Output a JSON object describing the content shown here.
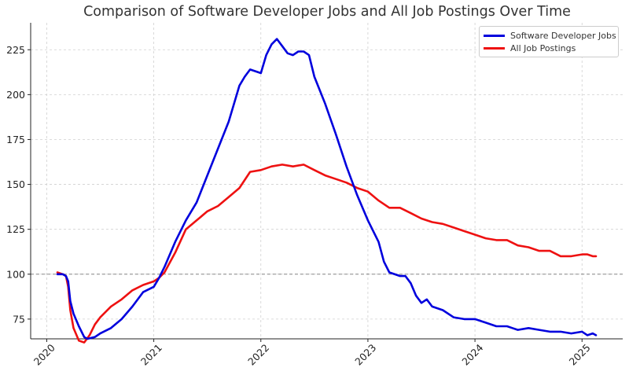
{
  "chart_data": {
    "type": "line",
    "title": "Comparison of Software Developer Jobs and All Job Postings Over Time",
    "xlabel": "",
    "ylabel": "",
    "x_ticks": [
      "2020",
      "2021",
      "2022",
      "2023",
      "2024",
      "2025"
    ],
    "y_ticks": [
      "75",
      "100",
      "125",
      "150",
      "175",
      "200",
      "225"
    ],
    "xlim": [
      2019.85,
      2025.38
    ],
    "ylim": [
      64,
      240
    ],
    "grid": true,
    "reference_line": 100,
    "legend_position": "top-right",
    "series": [
      {
        "name": "Software Developer Jobs",
        "color": "#0000dd",
        "points": [
          [
            2020.1,
            100
          ],
          [
            2020.15,
            100
          ],
          [
            2020.18,
            99
          ],
          [
            2020.2,
            96
          ],
          [
            2020.22,
            85
          ],
          [
            2020.25,
            78
          ],
          [
            2020.3,
            71
          ],
          [
            2020.35,
            65
          ],
          [
            2020.38,
            64
          ],
          [
            2020.45,
            65
          ],
          [
            2020.5,
            67
          ],
          [
            2020.6,
            70
          ],
          [
            2020.7,
            75
          ],
          [
            2020.8,
            82
          ],
          [
            2020.9,
            90
          ],
          [
            2021.0,
            93
          ],
          [
            2021.05,
            98
          ],
          [
            2021.1,
            104
          ],
          [
            2021.2,
            118
          ],
          [
            2021.3,
            130
          ],
          [
            2021.4,
            140
          ],
          [
            2021.5,
            155
          ],
          [
            2021.6,
            170
          ],
          [
            2021.7,
            185
          ],
          [
            2021.8,
            205
          ],
          [
            2021.85,
            210
          ],
          [
            2021.9,
            214
          ],
          [
            2022.0,
            212
          ],
          [
            2022.05,
            222
          ],
          [
            2022.1,
            228
          ],
          [
            2022.15,
            231
          ],
          [
            2022.2,
            227
          ],
          [
            2022.25,
            223
          ],
          [
            2022.3,
            222
          ],
          [
            2022.35,
            224
          ],
          [
            2022.4,
            224
          ],
          [
            2022.45,
            222
          ],
          [
            2022.5,
            210
          ],
          [
            2022.6,
            195
          ],
          [
            2022.7,
            178
          ],
          [
            2022.8,
            160
          ],
          [
            2022.9,
            144
          ],
          [
            2023.0,
            130
          ],
          [
            2023.1,
            118
          ],
          [
            2023.15,
            107
          ],
          [
            2023.2,
            101
          ],
          [
            2023.3,
            99
          ],
          [
            2023.35,
            99
          ],
          [
            2023.4,
            95
          ],
          [
            2023.45,
            88
          ],
          [
            2023.5,
            84
          ],
          [
            2023.55,
            86
          ],
          [
            2023.6,
            82
          ],
          [
            2023.7,
            80
          ],
          [
            2023.8,
            76
          ],
          [
            2023.9,
            75
          ],
          [
            2024.0,
            75
          ],
          [
            2024.1,
            73
          ],
          [
            2024.2,
            71
          ],
          [
            2024.3,
            71
          ],
          [
            2024.35,
            70
          ],
          [
            2024.4,
            69
          ],
          [
            2024.5,
            70
          ],
          [
            2024.6,
            69
          ],
          [
            2024.7,
            68
          ],
          [
            2024.8,
            68
          ],
          [
            2024.9,
            67
          ],
          [
            2025.0,
            68
          ],
          [
            2025.05,
            66
          ],
          [
            2025.1,
            67
          ],
          [
            2025.13,
            66
          ]
        ]
      },
      {
        "name": "All Job Postings",
        "color": "#ee1111",
        "points": [
          [
            2020.1,
            101
          ],
          [
            2020.15,
            100
          ],
          [
            2020.18,
            99
          ],
          [
            2020.2,
            93
          ],
          [
            2020.22,
            80
          ],
          [
            2020.25,
            70
          ],
          [
            2020.3,
            63
          ],
          [
            2020.35,
            62
          ],
          [
            2020.4,
            66
          ],
          [
            2020.45,
            72
          ],
          [
            2020.5,
            76
          ],
          [
            2020.6,
            82
          ],
          [
            2020.7,
            86
          ],
          [
            2020.8,
            91
          ],
          [
            2020.9,
            94
          ],
          [
            2021.0,
            96
          ],
          [
            2021.05,
            98
          ],
          [
            2021.1,
            101
          ],
          [
            2021.2,
            112
          ],
          [
            2021.3,
            125
          ],
          [
            2021.4,
            130
          ],
          [
            2021.5,
            135
          ],
          [
            2021.6,
            138
          ],
          [
            2021.7,
            143
          ],
          [
            2021.8,
            148
          ],
          [
            2021.9,
            157
          ],
          [
            2022.0,
            158
          ],
          [
            2022.1,
            160
          ],
          [
            2022.2,
            161
          ],
          [
            2022.3,
            160
          ],
          [
            2022.4,
            161
          ],
          [
            2022.5,
            158
          ],
          [
            2022.6,
            155
          ],
          [
            2022.7,
            153
          ],
          [
            2022.8,
            151
          ],
          [
            2022.9,
            148
          ],
          [
            2023.0,
            146
          ],
          [
            2023.1,
            141
          ],
          [
            2023.2,
            137
          ],
          [
            2023.3,
            137
          ],
          [
            2023.4,
            134
          ],
          [
            2023.5,
            131
          ],
          [
            2023.6,
            129
          ],
          [
            2023.7,
            128
          ],
          [
            2023.8,
            126
          ],
          [
            2023.9,
            124
          ],
          [
            2024.0,
            122
          ],
          [
            2024.1,
            120
          ],
          [
            2024.2,
            119
          ],
          [
            2024.3,
            119
          ],
          [
            2024.4,
            116
          ],
          [
            2024.5,
            115
          ],
          [
            2024.6,
            113
          ],
          [
            2024.7,
            113
          ],
          [
            2024.8,
            110
          ],
          [
            2024.9,
            110
          ],
          [
            2025.0,
            111
          ],
          [
            2025.05,
            111
          ],
          [
            2025.1,
            110
          ],
          [
            2025.13,
            110
          ]
        ]
      }
    ]
  }
}
